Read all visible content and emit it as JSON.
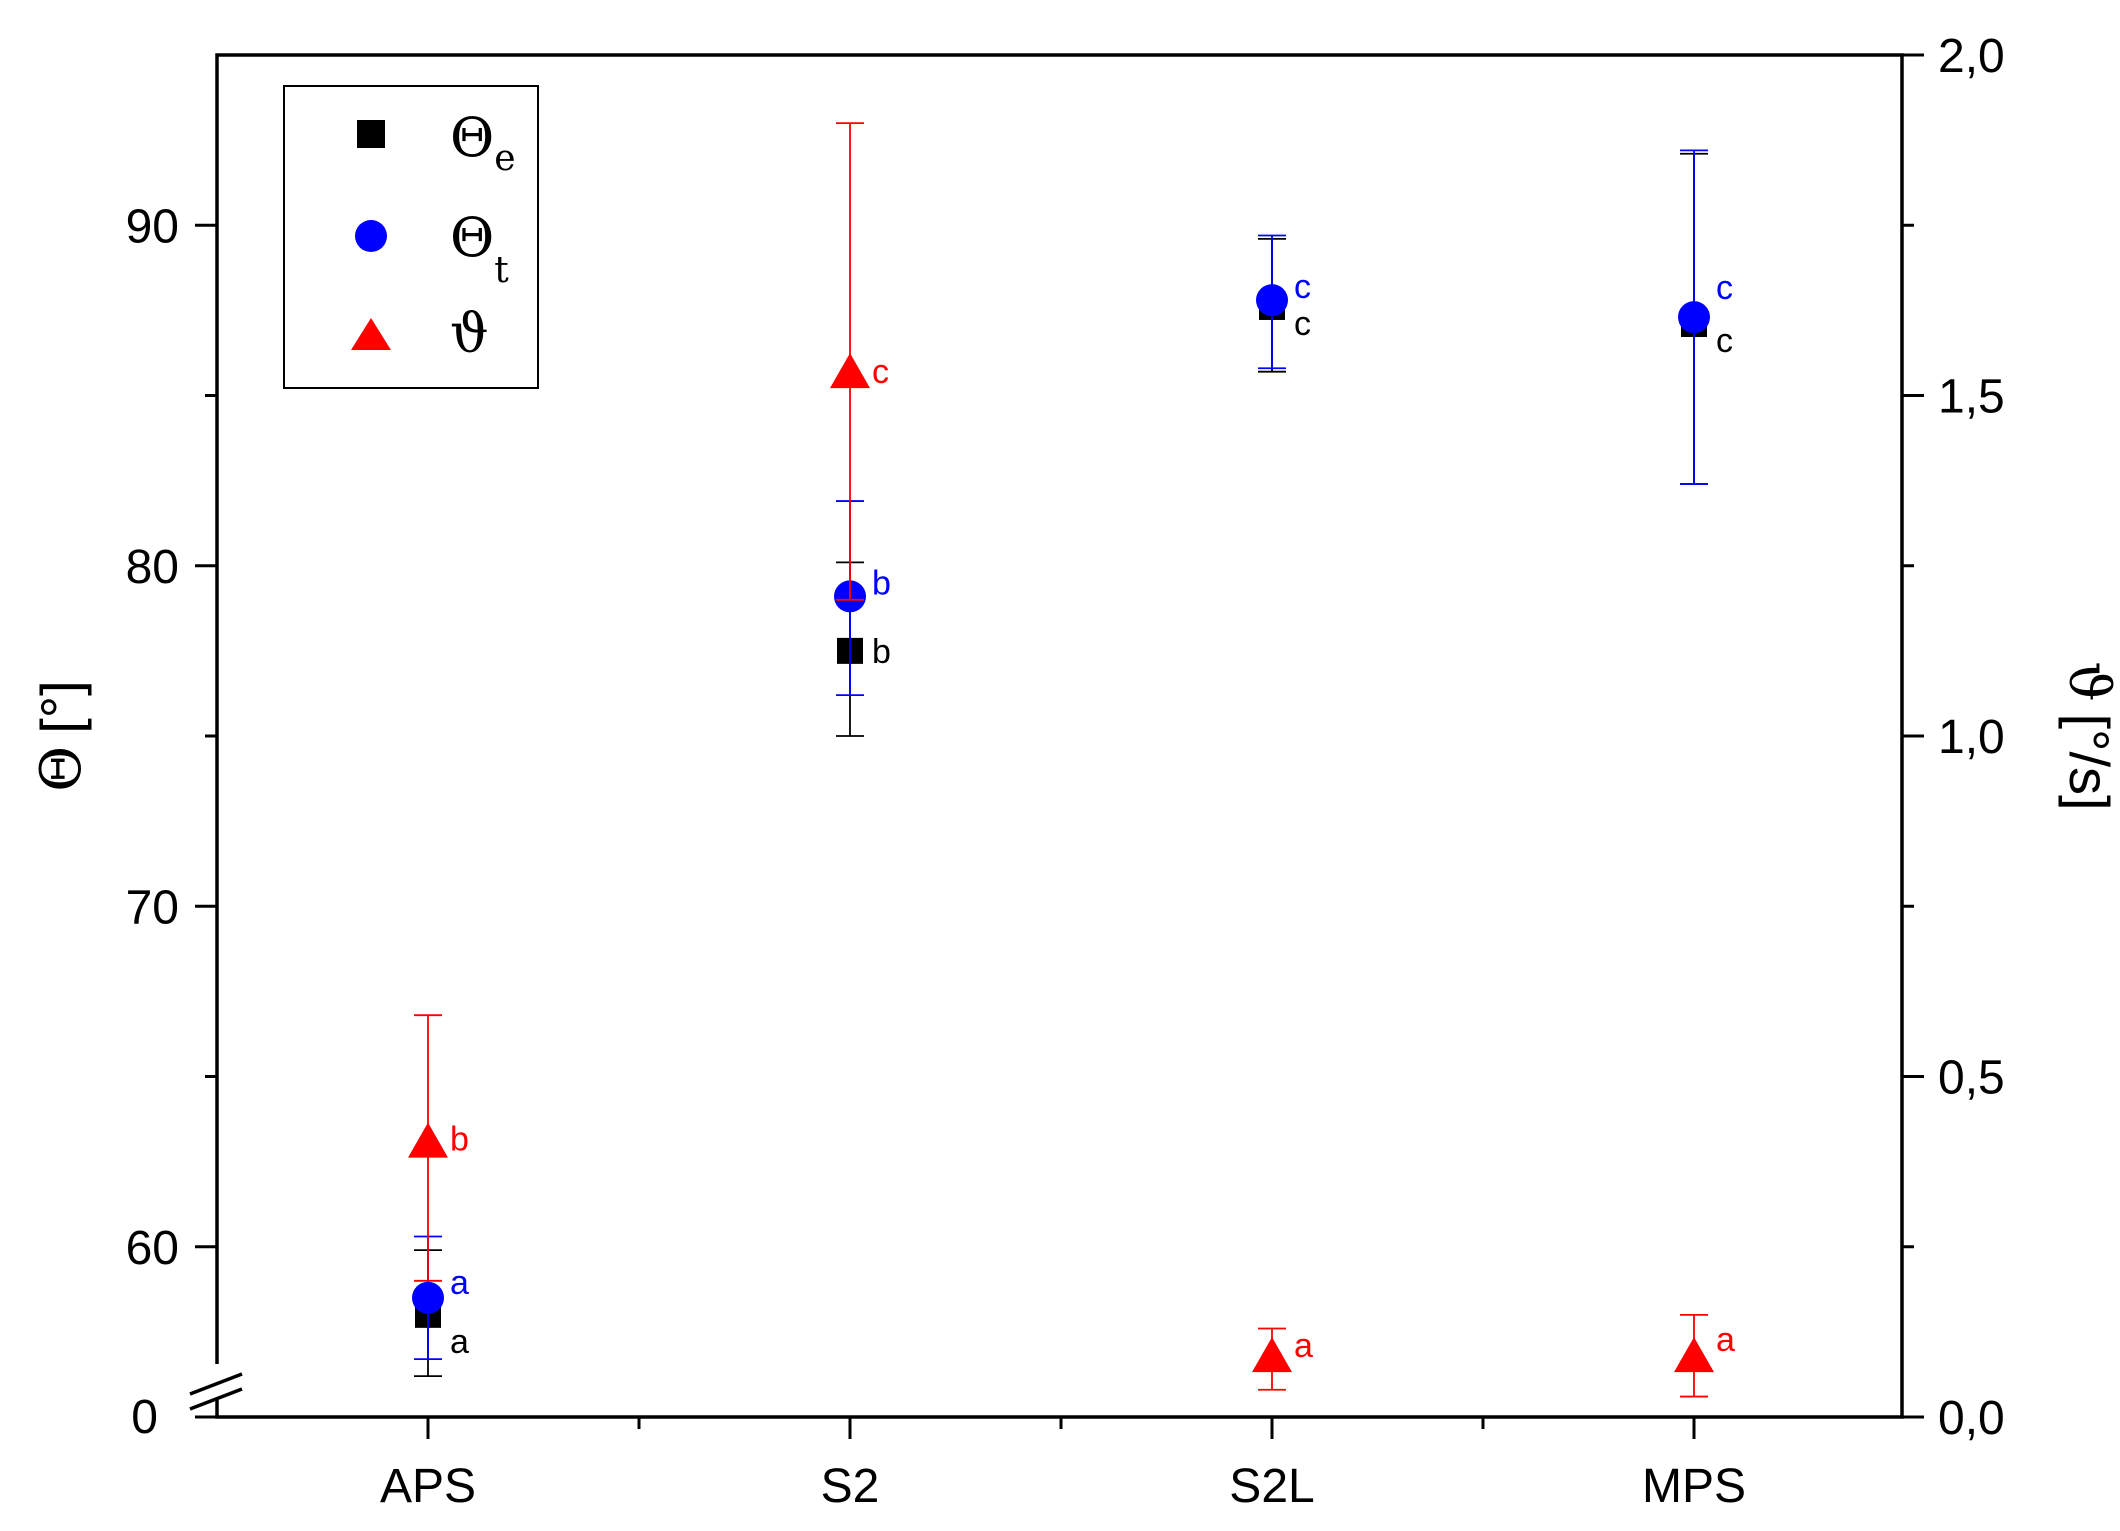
{
  "chart_data": {
    "type": "scatter",
    "categories": [
      "APS",
      "S2",
      "S2L",
      "MPS"
    ],
    "left_axis": {
      "label_symbol": "Θ",
      "label_unit": "[°]",
      "ylim_broken": [
        55,
        95
      ],
      "ticks": [
        60,
        70,
        80,
        90
      ],
      "tick_labels": [
        "60",
        "70",
        "80",
        "90"
      ],
      "break_baseline_label": "0"
    },
    "right_axis": {
      "label_symbol": "ϑ",
      "label_unit": "[°/s]",
      "ylim": [
        0,
        2
      ],
      "ticks": [
        0,
        0.5,
        1,
        1.5,
        2
      ],
      "tick_labels": [
        "0,0",
        "0,5",
        "1,0",
        "1,5",
        "2,0"
      ]
    },
    "series": [
      {
        "name": "Θe",
        "legend_base": "Θ",
        "legend_sub": "e",
        "axis": "left",
        "marker": "square",
        "color": "#000000",
        "values": [
          58.0,
          77.5,
          87.6,
          87.1
        ],
        "err_low": [
          56.2,
          75.0,
          85.7,
          82.4
        ],
        "err_high": [
          59.9,
          80.1,
          89.6,
          92.1
        ],
        "letters": [
          "a",
          "b",
          "c",
          "c"
        ]
      },
      {
        "name": "Θt",
        "legend_base": "Θ",
        "legend_sub": "t",
        "axis": "left",
        "marker": "circle",
        "color": "#0000ff",
        "values": [
          58.5,
          79.1,
          87.8,
          87.3
        ],
        "err_low": [
          56.7,
          76.2,
          85.8,
          82.4
        ],
        "err_high": [
          60.3,
          81.9,
          89.7,
          92.2
        ],
        "letters": [
          "a",
          "b",
          "c",
          "c"
        ]
      },
      {
        "name": "ϑ",
        "legend_base": "ϑ",
        "legend_sub": "",
        "axis": "right",
        "marker": "triangle",
        "color": "#ff0000",
        "values": [
          0.4,
          1.53,
          0.085,
          0.085
        ],
        "err_low": [
          0.2,
          1.2,
          0.04,
          0.03
        ],
        "err_high": [
          0.59,
          1.9,
          0.13,
          0.15
        ],
        "letters": [
          "b",
          "c",
          "a",
          "a"
        ]
      }
    ],
    "legend_position": "top-left",
    "grid": false
  }
}
